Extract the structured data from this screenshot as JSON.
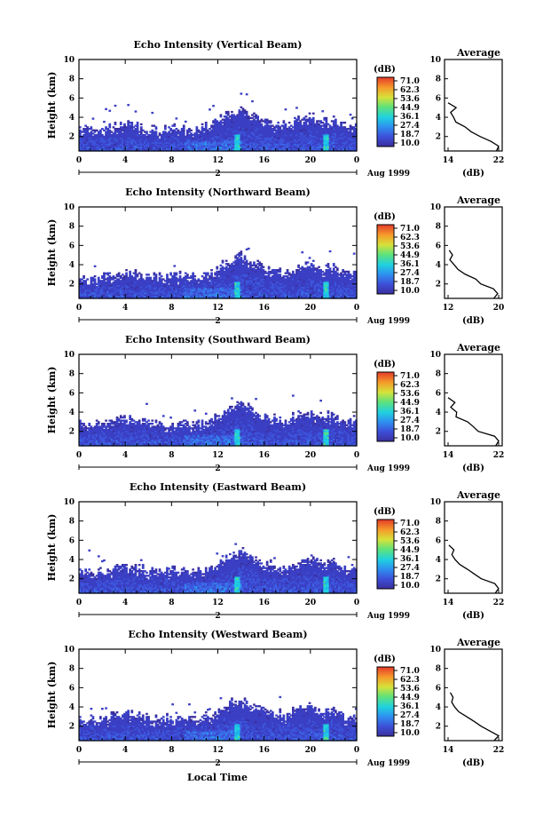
{
  "chart_data": {
    "type": "heatmap",
    "xlabel": "Local Time",
    "date_label": "Aug 1999",
    "day_label": "2",
    "x_ticks": [
      "0",
      "4",
      "8",
      "12",
      "16",
      "20",
      "0"
    ],
    "xlim": [
      0,
      24
    ],
    "ylabel": "Height (km)",
    "y_ticks": [
      "2",
      "4",
      "6",
      "8",
      "10"
    ],
    "ylim": [
      0.5,
      10
    ],
    "colorbar": {
      "unit": "(dB)",
      "labels": [
        "71.0",
        "62.3",
        "53.6",
        "44.9",
        "36.1",
        "27.4",
        "18.7",
        "10.0"
      ],
      "range": [
        10.0,
        71.0
      ]
    },
    "average_title": "Average",
    "average_xlabel": "(dB)",
    "panels": [
      {
        "title": "Echo Intensity (Vertical Beam)",
        "avg_xticks": [
          "14",
          "22"
        ],
        "avg_xlim": [
          14,
          22
        ]
      },
      {
        "title": "Echo Intensity (Northward Beam)",
        "avg_xticks": [
          "12",
          "20"
        ],
        "avg_xlim": [
          12,
          20
        ]
      },
      {
        "title": "Echo Intensity (Southward Beam)",
        "avg_xticks": [
          "14",
          "22"
        ],
        "avg_xlim": [
          14,
          22
        ]
      },
      {
        "title": "Echo Intensity (Eastward Beam)",
        "avg_xticks": [
          "14",
          "22"
        ],
        "avg_xlim": [
          14,
          22
        ]
      },
      {
        "title": "Echo Intensity (Westward Beam)",
        "avg_xticks": [
          "14",
          "22"
        ],
        "avg_xlim": [
          14,
          22
        ]
      }
    ],
    "echo_top_km": {
      "hour": [
        0,
        1,
        2,
        3,
        4,
        5,
        6,
        7,
        8,
        9,
        10,
        11,
        12,
        13,
        14,
        15,
        16,
        17,
        18,
        19,
        20,
        21,
        22,
        23,
        24
      ],
      "top": [
        2.9,
        2.7,
        2.8,
        3.1,
        3.3,
        3.2,
        2.9,
        2.7,
        2.9,
        2.8,
        2.7,
        3.0,
        3.6,
        4.4,
        4.9,
        4.1,
        3.7,
        3.3,
        3.2,
        3.8,
        4.2,
        3.5,
        3.8,
        3.0,
        3.2
      ]
    },
    "average_profile_dB": {
      "height_km": [
        0.5,
        1.0,
        1.5,
        2.0,
        2.5,
        3.0,
        3.5,
        4.0,
        4.5,
        5.0,
        5.5
      ],
      "value": [
        21.5,
        22.0,
        21.0,
        19.0,
        18.0,
        17.0,
        15.5,
        15.0,
        14.5,
        15.0,
        14.0
      ]
    }
  }
}
